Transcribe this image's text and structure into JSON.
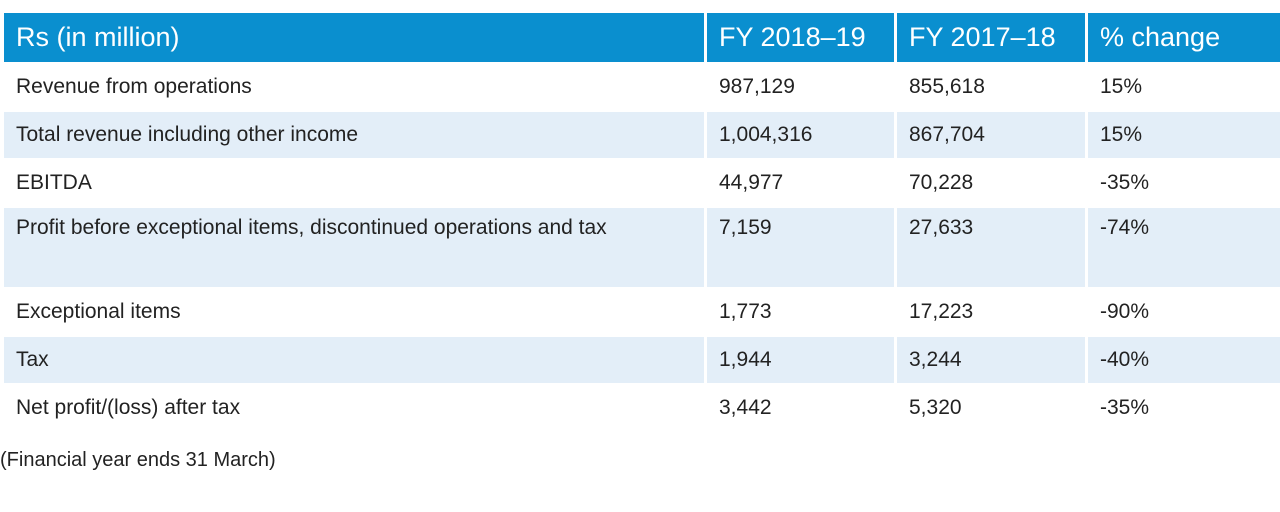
{
  "table": {
    "headers": [
      "Rs (in million)",
      "FY 2018–19",
      "FY 2017–18",
      "% change"
    ],
    "rows": [
      [
        "Revenue from operations",
        "987,129",
        "855,618",
        "15%"
      ],
      [
        "Total revenue including other income",
        "1,004,316",
        "867,704",
        "15%"
      ],
      [
        "EBITDA",
        "44,977",
        "70,228",
        "-35%"
      ],
      [
        "Profit before exceptional items, discontinued operations and tax",
        "7,159",
        "27,633",
        "-74%"
      ],
      [
        "Exceptional items",
        "1,773",
        "17,223",
        "-90%"
      ],
      [
        "Tax",
        "1,944",
        "3,244",
        "-40%"
      ],
      [
        "Net profit/(loss) after tax",
        "3,442",
        "5,320",
        "-35%"
      ]
    ]
  },
  "colors": {
    "header_bg": "#0a8fcf",
    "row_alt_bg": "#e3eef8"
  },
  "footnote": "(Financial year ends 31 March)"
}
